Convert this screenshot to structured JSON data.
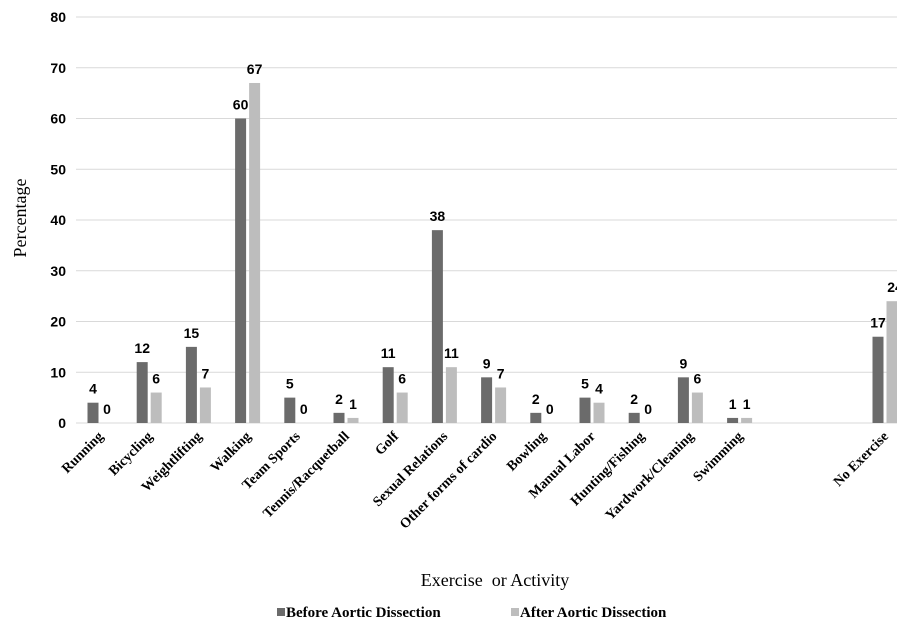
{
  "chart_data": {
    "type": "bar",
    "title": "",
    "xlabel": "Exercise  or Activity",
    "ylabel": "Percentage",
    "ylim": [
      0,
      80
    ],
    "yticks": [
      0,
      10,
      20,
      30,
      40,
      50,
      60,
      70,
      80
    ],
    "grid": true,
    "legend_position": "bottom",
    "categories": [
      "Running",
      "Bicycling",
      "Weightlifting",
      "Walking",
      "Team Sports",
      "Tennis/Racquetball",
      "Golf",
      "Sexual Relations",
      "Other forms of cardio",
      "Bowling",
      "Manual Labor",
      "Hunting/Fishing",
      "Yardwork/Cleaning",
      "Swimming",
      "No Exercise"
    ],
    "series": [
      {
        "name": "Before Aortic Dissection",
        "color": "#6b6b6b",
        "values": [
          4,
          12,
          15,
          60,
          5,
          2,
          11,
          38,
          9,
          2,
          5,
          2,
          9,
          1,
          17
        ]
      },
      {
        "name": "After Aortic Dissection",
        "color": "#bdbdbd",
        "values": [
          0,
          6,
          7,
          67,
          0,
          1,
          6,
          11,
          7,
          0,
          4,
          0,
          6,
          1,
          24
        ]
      }
    ]
  }
}
